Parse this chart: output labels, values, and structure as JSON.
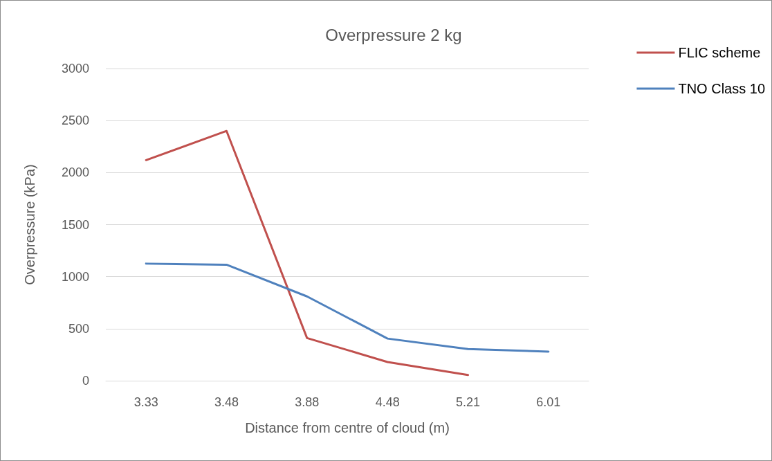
{
  "chart_data": {
    "type": "line",
    "title": "Overpressure 2 kg",
    "xlabel": "Distance from centre of cloud (m)",
    "ylabel": "Overpressure (kPa)",
    "categories": [
      "3.33",
      "3.48",
      "3.88",
      "4.48",
      "5.21",
      "6.01"
    ],
    "series": [
      {
        "name": "FLIC scheme",
        "color": "#c0504d",
        "values": [
          2120,
          2400,
          410,
          180,
          55,
          null
        ]
      },
      {
        "name": "TNO Class 10",
        "color": "#4f81bd",
        "values": [
          1125,
          1115,
          810,
          405,
          305,
          280
        ]
      }
    ],
    "ylim": [
      0,
      3000
    ],
    "yticks": [
      0,
      500,
      1000,
      1500,
      2000,
      2500,
      3000
    ],
    "grid": "y",
    "legend": "top right",
    "marker": "none",
    "line_style": "solid"
  }
}
